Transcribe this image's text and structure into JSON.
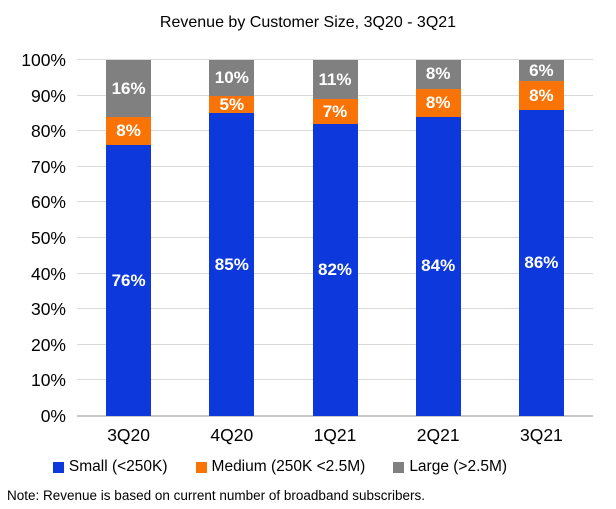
{
  "chart_data": {
    "type": "bar",
    "variant": "stacked-100",
    "title": "Revenue by Customer Size, 3Q20 - 3Q21",
    "categories": [
      "3Q20",
      "4Q20",
      "1Q21",
      "2Q21",
      "3Q21"
    ],
    "series": [
      {
        "name": "Small (<250K)",
        "color": "#0C38DC",
        "values": [
          76,
          85,
          82,
          84,
          86
        ]
      },
      {
        "name": "Medium (250K <2.5M)",
        "color": "#FA7306",
        "values": [
          8,
          5,
          7,
          8,
          8
        ]
      },
      {
        "name": "Large (>2.5M)",
        "color": "#808080",
        "values": [
          16,
          10,
          11,
          8,
          6
        ]
      }
    ],
    "data_labels": {
      "show": true,
      "suffix": "%",
      "color": "#FFFFFF"
    },
    "y_axis": {
      "min": 0,
      "max": 100,
      "ticks": [
        "0%",
        "10%",
        "20%",
        "30%",
        "40%",
        "50%",
        "60%",
        "70%",
        "80%",
        "90%",
        "100%"
      ]
    },
    "grid": true,
    "legend_position": "bottom"
  },
  "note": "Note: Revenue is based on current number of broadband subscribers."
}
